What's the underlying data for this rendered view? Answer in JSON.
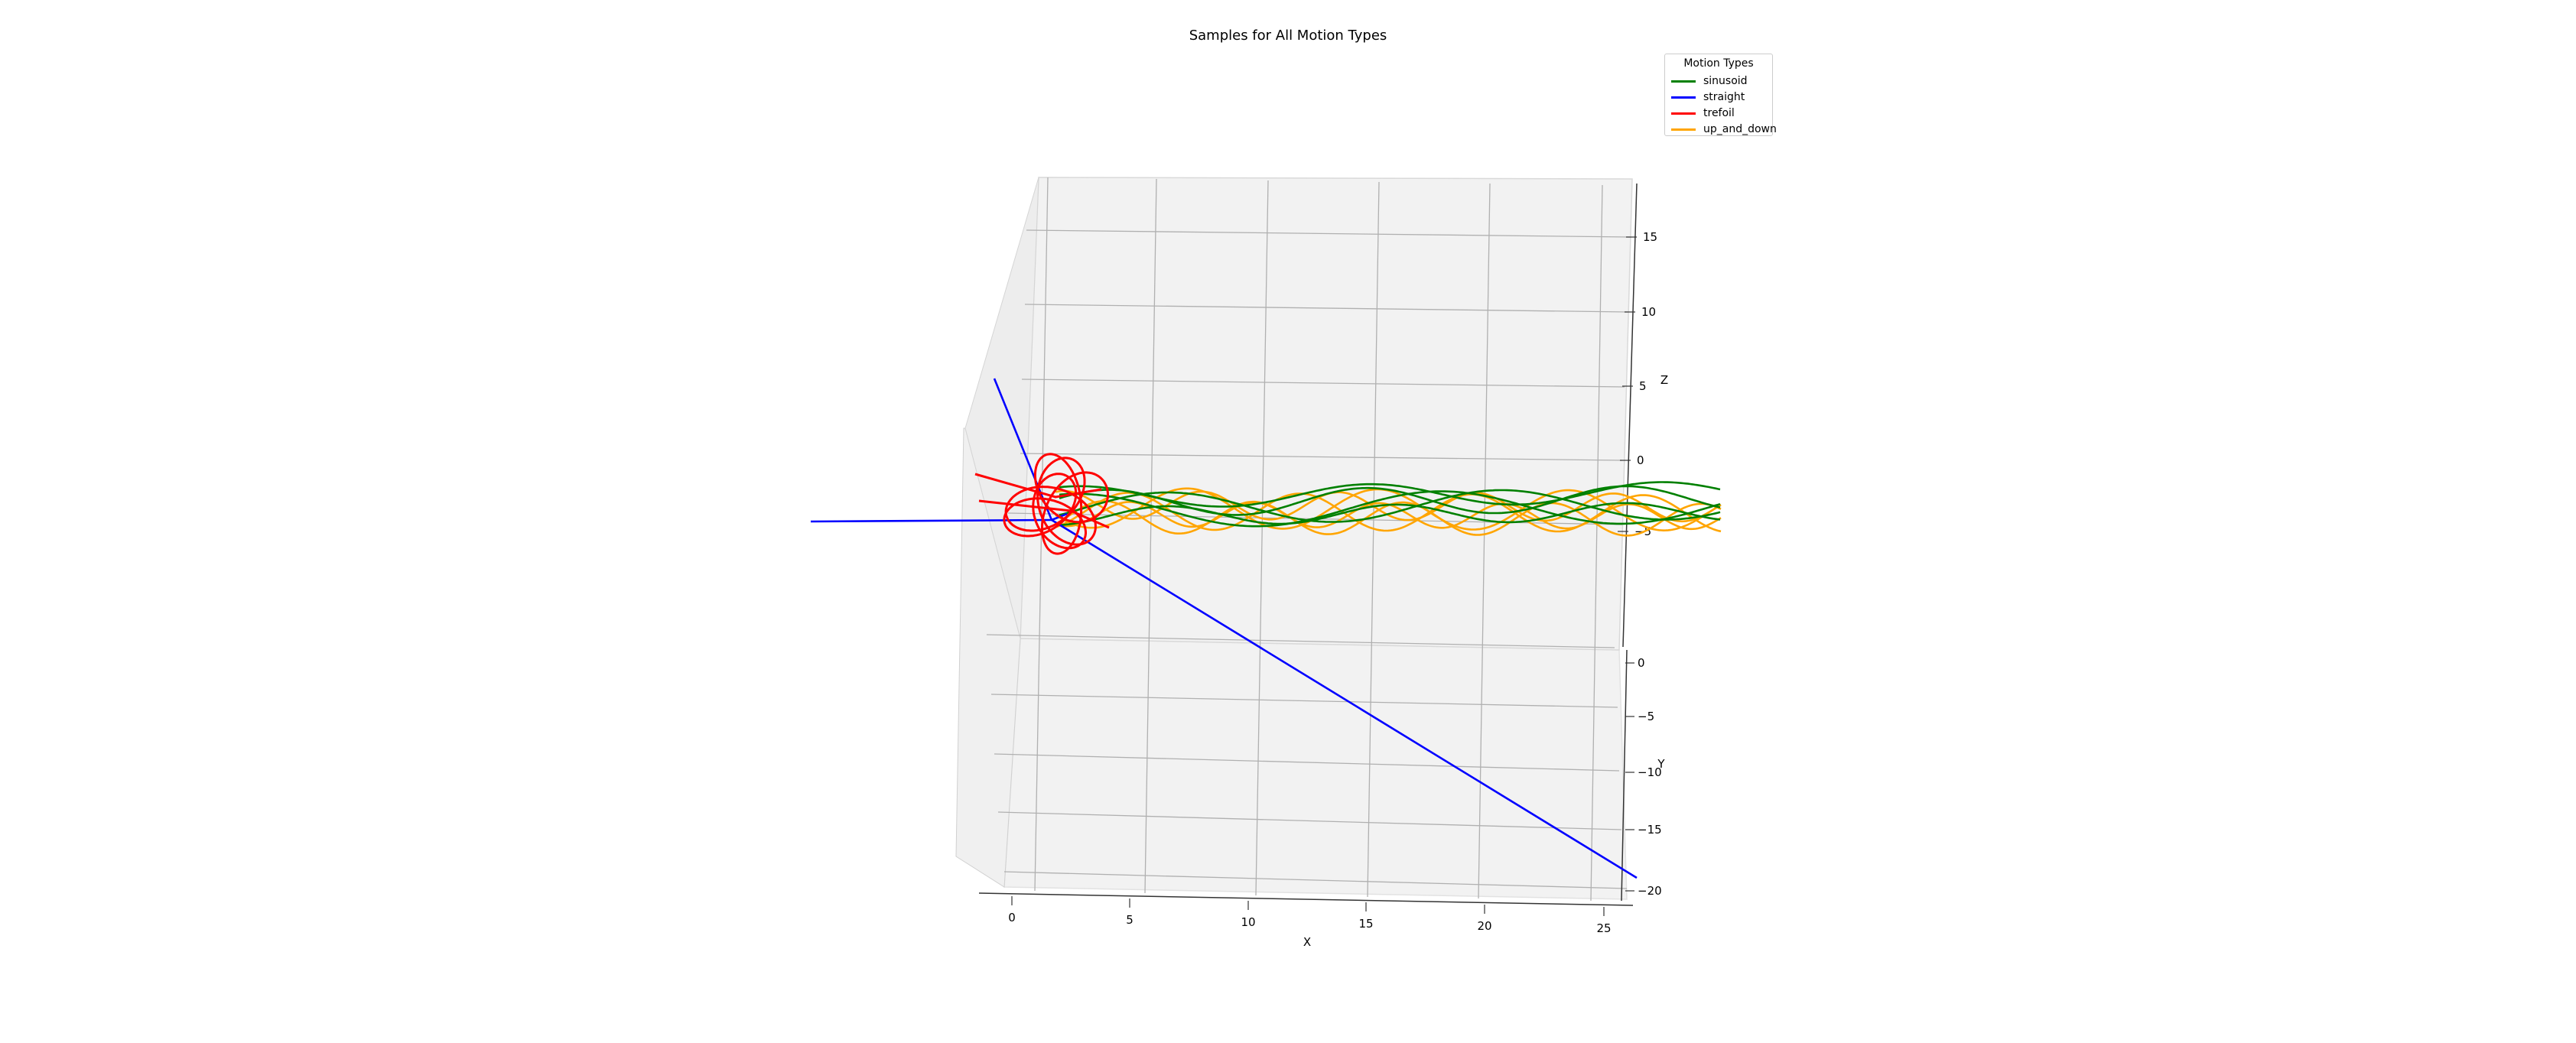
{
  "title": "Samples for All Motion Types",
  "legend": {
    "title": "Motion Types",
    "entries": [
      {
        "label": "sinusoid",
        "color": "#008000"
      },
      {
        "label": "straight",
        "color": "#0000ff"
      },
      {
        "label": "trefoil",
        "color": "#ff0000"
      },
      {
        "label": "up_and_down",
        "color": "#ffa500"
      }
    ]
  },
  "chart_data": {
    "type": "line3d",
    "title": "Samples for All Motion Types",
    "xlabel": "X",
    "ylabel": "Y",
    "zlabel": "Z",
    "xticks": [
      0,
      5,
      10,
      15,
      20,
      25
    ],
    "yticks": [
      0,
      -5,
      -10,
      -15,
      -20
    ],
    "zticks": [
      15,
      10,
      5,
      0,
      -5
    ],
    "grid": true,
    "legend_position": "upper right",
    "series": [
      {
        "name": "sinusoid",
        "color": "#008000",
        "description": "several sinusoidal trajectories along x from about 2 to 28 near y=3, z oscillating around -3"
      },
      {
        "name": "straight",
        "color": "#0000ff",
        "description": "straight-line trajectories radiating from near the origin toward x=26,y=-18; x=-9; and upward"
      },
      {
        "name": "trefoil",
        "color": "#ff0000",
        "description": "trefoil knot loops centered near x=1, z=-3"
      },
      {
        "name": "up_and_down",
        "color": "#ffa500",
        "description": "oscillating trajectories along x from about 2 to 28 with larger z amplitude"
      }
    ]
  }
}
